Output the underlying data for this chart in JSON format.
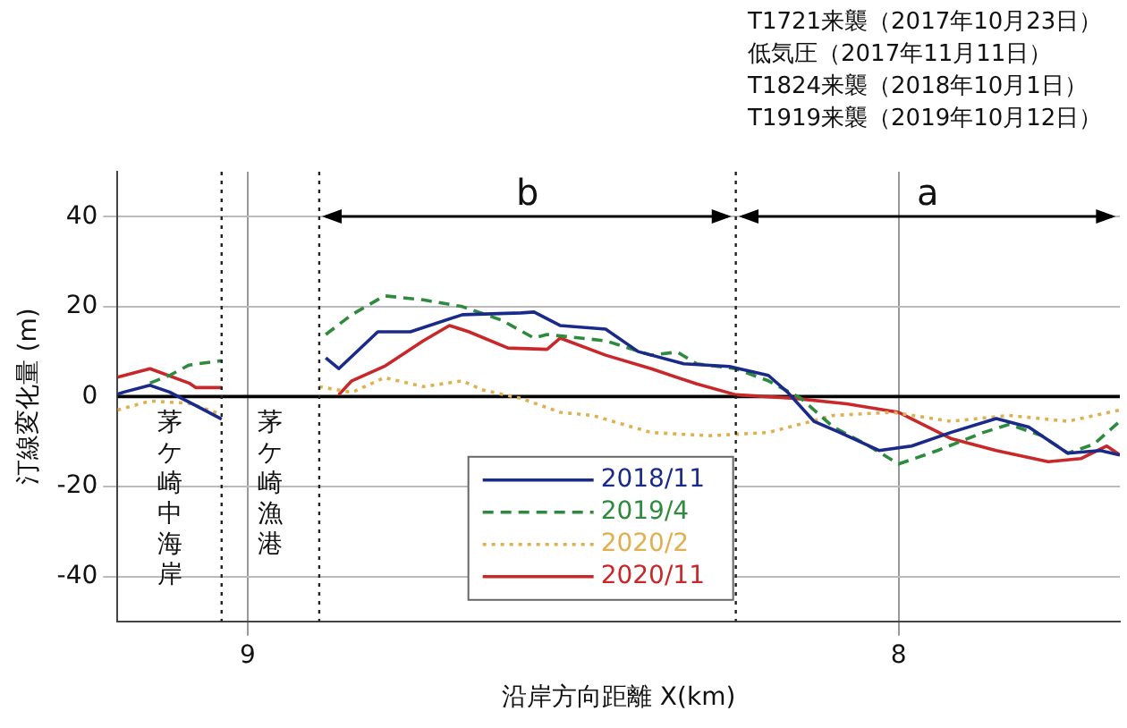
{
  "chart_data": {
    "type": "line",
    "xlabel": "沿岸方向距離 X(km)",
    "ylabel": "汀線変化量 (m)",
    "xlim": [
      9.2,
      7.66
    ],
    "xticks": [
      9,
      8
    ],
    "ylim": [
      -50,
      50
    ],
    "yticks": [
      40,
      20,
      0,
      -20,
      -40
    ],
    "grid": true,
    "legend": "bottom",
    "marker": "none",
    "series": [
      {
        "name": "2018/11",
        "color": "#1a2a8a",
        "line_style": "solid",
        "x": [
          9.2,
          9.19,
          9.15,
          9.12,
          9.08,
          9.04,
          null,
          8.88,
          8.86,
          8.8,
          8.75,
          8.67,
          8.58,
          8.56,
          8.52,
          8.45,
          8.4,
          8.33,
          8.26,
          8.2,
          8.17,
          8.13,
          8.09,
          8.03,
          7.98,
          7.92,
          7.85,
          7.8,
          7.74,
          7.69,
          7.66
        ],
        "values": [
          0.5,
          1,
          2.5,
          1,
          -2,
          -5,
          null,
          8.6,
          6.2,
          14.4,
          14.4,
          18.2,
          18.6,
          18.8,
          15.8,
          15,
          10,
          7.3,
          6.7,
          4.7,
          0.9,
          -5.5,
          -8,
          -12,
          -11,
          -8,
          -4.9,
          -6.8,
          -12.6,
          -12,
          -13
        ]
      },
      {
        "name": "2019/4",
        "color": "#2e8b3e",
        "line_style": "dashed",
        "x": [
          9.15,
          9.12,
          9.09,
          9.04,
          null,
          8.88,
          8.84,
          8.79,
          8.73,
          8.67,
          8.61,
          8.56,
          8.54,
          8.45,
          8.38,
          8.34,
          8.31,
          8.25,
          8.2,
          8.15,
          8.1,
          8.05,
          8.0,
          7.94,
          7.87,
          7.83,
          7.78,
          7.74,
          7.7,
          7.66
        ],
        "values": [
          3,
          4.7,
          7,
          8,
          null,
          13.8,
          18.2,
          22.4,
          21.5,
          20,
          17,
          13,
          13.8,
          12.4,
          9.2,
          9.9,
          7.3,
          6.2,
          3.5,
          -0.4,
          -6.8,
          -10.6,
          -15,
          -12,
          -8,
          -6.2,
          -8.7,
          -12.6,
          -10.6,
          -5.5
        ]
      },
      {
        "name": "2020/2",
        "color": "#e0b050",
        "line_style": "dotted",
        "x": [
          9.2,
          9.15,
          9.09,
          9.04,
          null,
          8.89,
          8.84,
          8.79,
          8.73,
          8.67,
          8.64,
          8.58,
          8.52,
          8.47,
          8.38,
          8.29,
          8.2,
          8.1,
          8.01,
          7.92,
          7.83,
          7.74,
          7.66
        ],
        "values": [
          -3,
          -1,
          -1.5,
          -4,
          null,
          2.2,
          0.9,
          4.2,
          2.2,
          3.5,
          1.5,
          -0.4,
          -3.5,
          -4.2,
          -8,
          -8.7,
          -8,
          -4.2,
          -3.5,
          -5.5,
          -4.2,
          -5.5,
          -3
        ]
      },
      {
        "name": "2020/11",
        "color": "#c8282a",
        "line_style": "solid",
        "x": [
          9.2,
          9.15,
          9.09,
          9.08,
          9.04,
          null,
          8.86,
          8.84,
          8.79,
          8.73,
          8.69,
          8.66,
          8.6,
          8.54,
          8.52,
          8.45,
          8.38,
          8.31,
          8.25,
          8.16,
          8.08,
          8.0,
          7.92,
          7.85,
          7.77,
          7.72,
          7.68,
          7.66
        ],
        "values": [
          4.3,
          6.2,
          3,
          2,
          2,
          null,
          0.4,
          3.5,
          6.7,
          12.4,
          15.8,
          14.4,
          10.8,
          10.5,
          13,
          9.2,
          6.2,
          2.8,
          0.4,
          -0.4,
          -1.6,
          -3.5,
          -9.3,
          -12,
          -14.5,
          -13.8,
          -11,
          -13
        ]
      }
    ],
    "ref_lines": [
      {
        "axis": "y",
        "value": 0,
        "color": "#000000",
        "line_style": "solid"
      },
      {
        "axis": "x",
        "value": 9.04,
        "color": "#222222",
        "line_style": "dotted"
      },
      {
        "axis": "x",
        "value": 8.89,
        "color": "#222222",
        "line_style": "dotted"
      },
      {
        "axis": "x",
        "value": 8.25,
        "color": "#222222",
        "line_style": "dotted"
      }
    ],
    "annotations": [
      "T1721来襲（2017年10月23日）",
      "低気圧（2017年11月11日）",
      "T1824来襲（2018年10月1日）",
      "T1919来襲（2019年10月12日）",
      "b",
      "a",
      "茅ケ崎中海岸",
      "茅ケ崎漁港"
    ]
  }
}
